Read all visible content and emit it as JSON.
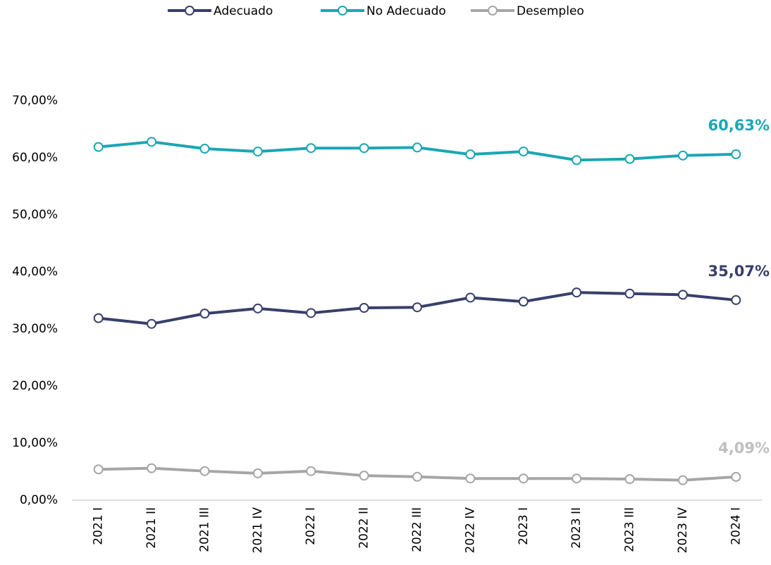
{
  "chart_data": {
    "type": "line",
    "categories": [
      "2021 I",
      "2021 II",
      "2021 III",
      "2021 IV",
      "2022 I",
      "2022 II",
      "2022 III",
      "2022 IV",
      "2023 I",
      "2023 II",
      "2023 III",
      "2023 IV",
      "2024 I"
    ],
    "series": [
      {
        "name": "Adecuado",
        "color": "#383f6b",
        "values": [
          31.9,
          30.9,
          32.7,
          33.6,
          32.8,
          33.7,
          33.8,
          35.5,
          34.8,
          36.4,
          36.2,
          36.0,
          35.07
        ],
        "value_labels": [
          null,
          null,
          null,
          null,
          null,
          null,
          null,
          null,
          null,
          null,
          null,
          null,
          "35,07%"
        ]
      },
      {
        "name": "No Adecuado",
        "color": "#1ba6b5",
        "values": [
          61.9,
          62.8,
          61.6,
          61.1,
          61.7,
          61.7,
          61.8,
          60.6,
          61.1,
          59.6,
          59.8,
          60.4,
          60.63
        ],
        "value_labels": [
          null,
          null,
          null,
          null,
          null,
          null,
          null,
          null,
          null,
          null,
          null,
          null,
          "60,63%"
        ]
      },
      {
        "name": "Desempleo",
        "color": "#a6a6a6",
        "values": [
          5.4,
          5.6,
          5.1,
          4.7,
          5.1,
          4.3,
          4.1,
          3.8,
          3.8,
          3.8,
          3.7,
          3.5,
          4.09
        ],
        "value_labels": [
          null,
          null,
          null,
          null,
          null,
          null,
          null,
          null,
          null,
          null,
          null,
          null,
          "4,09%"
        ]
      }
    ],
    "ylim": [
      0,
      70
    ],
    "yticks": [
      {
        "value": 0,
        "label": "0,00%"
      },
      {
        "value": 10,
        "label": "10,00%"
      },
      {
        "value": 20,
        "label": "20,00%"
      },
      {
        "value": 30,
        "label": "30,00%"
      },
      {
        "value": 40,
        "label": "40,00%"
      },
      {
        "value": 50,
        "label": "50,00%"
      },
      {
        "value": 60,
        "label": "60,00%"
      },
      {
        "value": 70,
        "label": "70,00%"
      }
    ],
    "grid": false,
    "legend": "top"
  }
}
